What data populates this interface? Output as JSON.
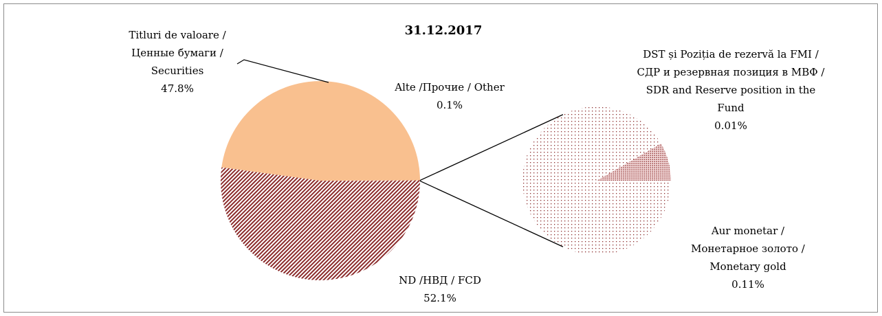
{
  "chart_data": {
    "type": "pie",
    "title": "31.12.2017",
    "categories": [
      [
        "Titluri de valoare /",
        "Ценные бумаги /",
        "Securities"
      ],
      [
        "ND /НВД / FCD"
      ],
      [
        "Alte /Прочие / Other"
      ]
    ],
    "values": [
      47.8,
      52.1,
      0.1
    ],
    "value_labels": [
      "47.8%",
      "52.1%",
      "0.1%"
    ],
    "colors": [
      "#f9c08f",
      "#8b2b2b",
      "#8b2b2b"
    ],
    "secondary": {
      "categories": [
        [
          "DST și Poziția de rezervă la FMI /",
          "СДР и резервная позиция в МВФ /",
          "SDR and Reserve position in the",
          "Fund"
        ],
        [
          "Aur monetar /",
          "Монетарное золото /",
          "Monetary gold"
        ]
      ],
      "values": [
        0.01,
        0.11
      ],
      "value_labels": [
        "0.01%",
        "0.11%"
      ],
      "colors": [
        "#8b2b2b",
        "#8b2b2b"
      ]
    }
  }
}
